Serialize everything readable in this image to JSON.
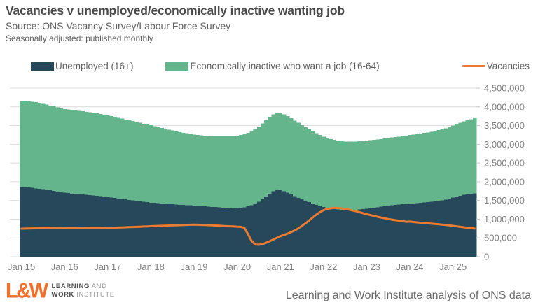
{
  "header": {
    "title": "Vacancies v unemployed/economically inactive wanting job",
    "source": "Source: ONS Vacancy Survey/Labour Force Survey",
    "subtitle": "Seasonally adjusted: published monthly"
  },
  "legend": {
    "unemployed": "Unemployed (16+)",
    "inactive": "Economically inactive who want a job (16-64)",
    "vacancies": "Vacancies"
  },
  "colors": {
    "unemployed": "#27485a",
    "inactive": "#64b58c",
    "vacancies": "#ed7a31",
    "grid": "#dcdcdc",
    "tick": "#c4c4c4",
    "axis_text": "#7f7f7f",
    "logo_orange": "#f2702a"
  },
  "footer": {
    "logo_mark": "L&W",
    "logo_line1_bold": "LEARNING",
    "logo_line1_rest": " AND",
    "logo_line2_bold": "WORK",
    "logo_line2_rest": " INSTITUTE",
    "attribution": "Learning and Work Institute analysis of ONS data"
  },
  "chart_data": {
    "type": "bar",
    "subtype": "monthly stacked bars with line overlay",
    "x_range": [
      "Jan 2015",
      "Jul 2025"
    ],
    "n_points": 127,
    "x_tick_labels": [
      "Jan 15",
      "Jan 16",
      "Jan 17",
      "Jan 18",
      "Jan 19",
      "Jan 20",
      "Jan 21",
      "Jan 22",
      "Jan 23",
      "Jan 24",
      "Jan 25"
    ],
    "ylim_thousands": [
      0,
      4500
    ],
    "y_ticks_thousands": [
      0,
      500,
      1000,
      1500,
      2000,
      2500,
      3000,
      3500,
      4000,
      4500
    ],
    "y_tick_labels": [
      "0",
      "500,000",
      "1,000,000",
      "1,500,000",
      "2,000,000",
      "2,500,000",
      "3,000,000",
      "3,500,000",
      "4,000,000",
      "4,500,000"
    ],
    "grid": true,
    "legend_position": "top",
    "unit": "people, thousands (values estimated from chart)",
    "series": [
      {
        "name": "Unemployed (16+)",
        "type": "bar",
        "stacked": true,
        "values_thousands": [
          1860,
          1855,
          1845,
          1835,
          1825,
          1815,
          1800,
          1785,
          1770,
          1755,
          1740,
          1720,
          1705,
          1695,
          1685,
          1675,
          1668,
          1660,
          1650,
          1642,
          1635,
          1625,
          1615,
          1605,
          1592,
          1580,
          1566,
          1552,
          1540,
          1527,
          1513,
          1500,
          1487,
          1475,
          1463,
          1452,
          1442,
          1434,
          1426,
          1419,
          1411,
          1404,
          1397,
          1391,
          1386,
          1381,
          1377,
          1372,
          1364,
          1357,
          1350,
          1343,
          1336,
          1329,
          1322,
          1315,
          1309,
          1303,
          1297,
          1292,
          1295,
          1305,
          1320,
          1345,
          1375,
          1415,
          1470,
          1535,
          1605,
          1680,
          1745,
          1790,
          1775,
          1745,
          1705,
          1660,
          1615,
          1572,
          1530,
          1490,
          1452,
          1416,
          1382,
          1350,
          1322,
          1300,
          1282,
          1268,
          1258,
          1250,
          1246,
          1244,
          1247,
          1253,
          1262,
          1272,
          1283,
          1295,
          1308,
          1320,
          1333,
          1345,
          1357,
          1368,
          1378,
          1388,
          1397,
          1406,
          1414,
          1422,
          1430,
          1438,
          1447,
          1456,
          1466,
          1477,
          1490,
          1505,
          1525,
          1550,
          1578,
          1605,
          1628,
          1648,
          1665,
          1680,
          1692
        ]
      },
      {
        "name": "Economically inactive who want a job (16-64)",
        "type": "bar",
        "stacked": true,
        "values_thousands": [
          2290,
          2295,
          2300,
          2305,
          2300,
          2292,
          2283,
          2274,
          2265,
          2257,
          2250,
          2243,
          2237,
          2232,
          2238,
          2234,
          2229,
          2224,
          2219,
          2213,
          2207,
          2201,
          2195,
          2188,
          2180,
          2172,
          2163,
          2154,
          2146,
          2137,
          2128,
          2118,
          2108,
          2098,
          2088,
          2078,
          2066,
          2052,
          2037,
          2021,
          2005,
          1989,
          1973,
          1957,
          1942,
          1928,
          1916,
          1906,
          1898,
          1893,
          1890,
          1889,
          1890,
          1893,
          1897,
          1902,
          1908,
          1915,
          1922,
          1930,
          1938,
          1945,
          1952,
          1962,
          1975,
          1990,
          2006,
          2021,
          2034,
          2045,
          2053,
          2058,
          2058,
          2054,
          2046,
          2034,
          2019,
          2002,
          1984,
          1966,
          1948,
          1931,
          1915,
          1900,
          1884,
          1870,
          1858,
          1848,
          1840,
          1833,
          1828,
          1824,
          1821,
          1818,
          1816,
          1814,
          1812,
          1810,
          1809,
          1808,
          1808,
          1809,
          1810,
          1812,
          1815,
          1818,
          1822,
          1826,
          1831,
          1836,
          1842,
          1848,
          1855,
          1862,
          1870,
          1878,
          1887,
          1896,
          1906,
          1916,
          1927,
          1938,
          1950,
          1963,
          1977,
          1992,
          2008
        ]
      },
      {
        "name": "Vacancies",
        "type": "line",
        "stacked": false,
        "values_thousands": [
          745,
          748,
          751,
          754,
          757,
          759,
          761,
          762,
          762,
          763,
          764,
          766,
          768,
          769,
          770,
          769,
          768,
          766,
          764,
          762,
          761,
          761,
          762,
          764,
          767,
          770,
          773,
          776,
          780,
          784,
          788,
          792,
          796,
          800,
          804,
          808,
          812,
          816,
          820,
          824,
          828,
          831,
          834,
          837,
          840,
          844,
          848,
          851,
          853,
          851,
          848,
          844,
          840,
          835,
          830,
          825,
          820,
          815,
          810,
          806,
          800,
          795,
          770,
          600,
          420,
          325,
          318,
          335,
          370,
          410,
          455,
          500,
          545,
          580,
          615,
          655,
          700,
          755,
          820,
          890,
          965,
          1045,
          1120,
          1185,
          1240,
          1270,
          1290,
          1300,
          1297,
          1288,
          1274,
          1256,
          1235,
          1211,
          1186,
          1160,
          1134,
          1110,
          1087,
          1065,
          1044,
          1024,
          1005,
          988,
          972,
          957,
          944,
          932,
          935,
          925,
          915,
          905,
          896,
          888,
          880,
          872,
          863,
          854,
          845,
          835,
          822,
          810,
          797,
          785,
          772,
          760,
          748
        ]
      }
    ]
  }
}
